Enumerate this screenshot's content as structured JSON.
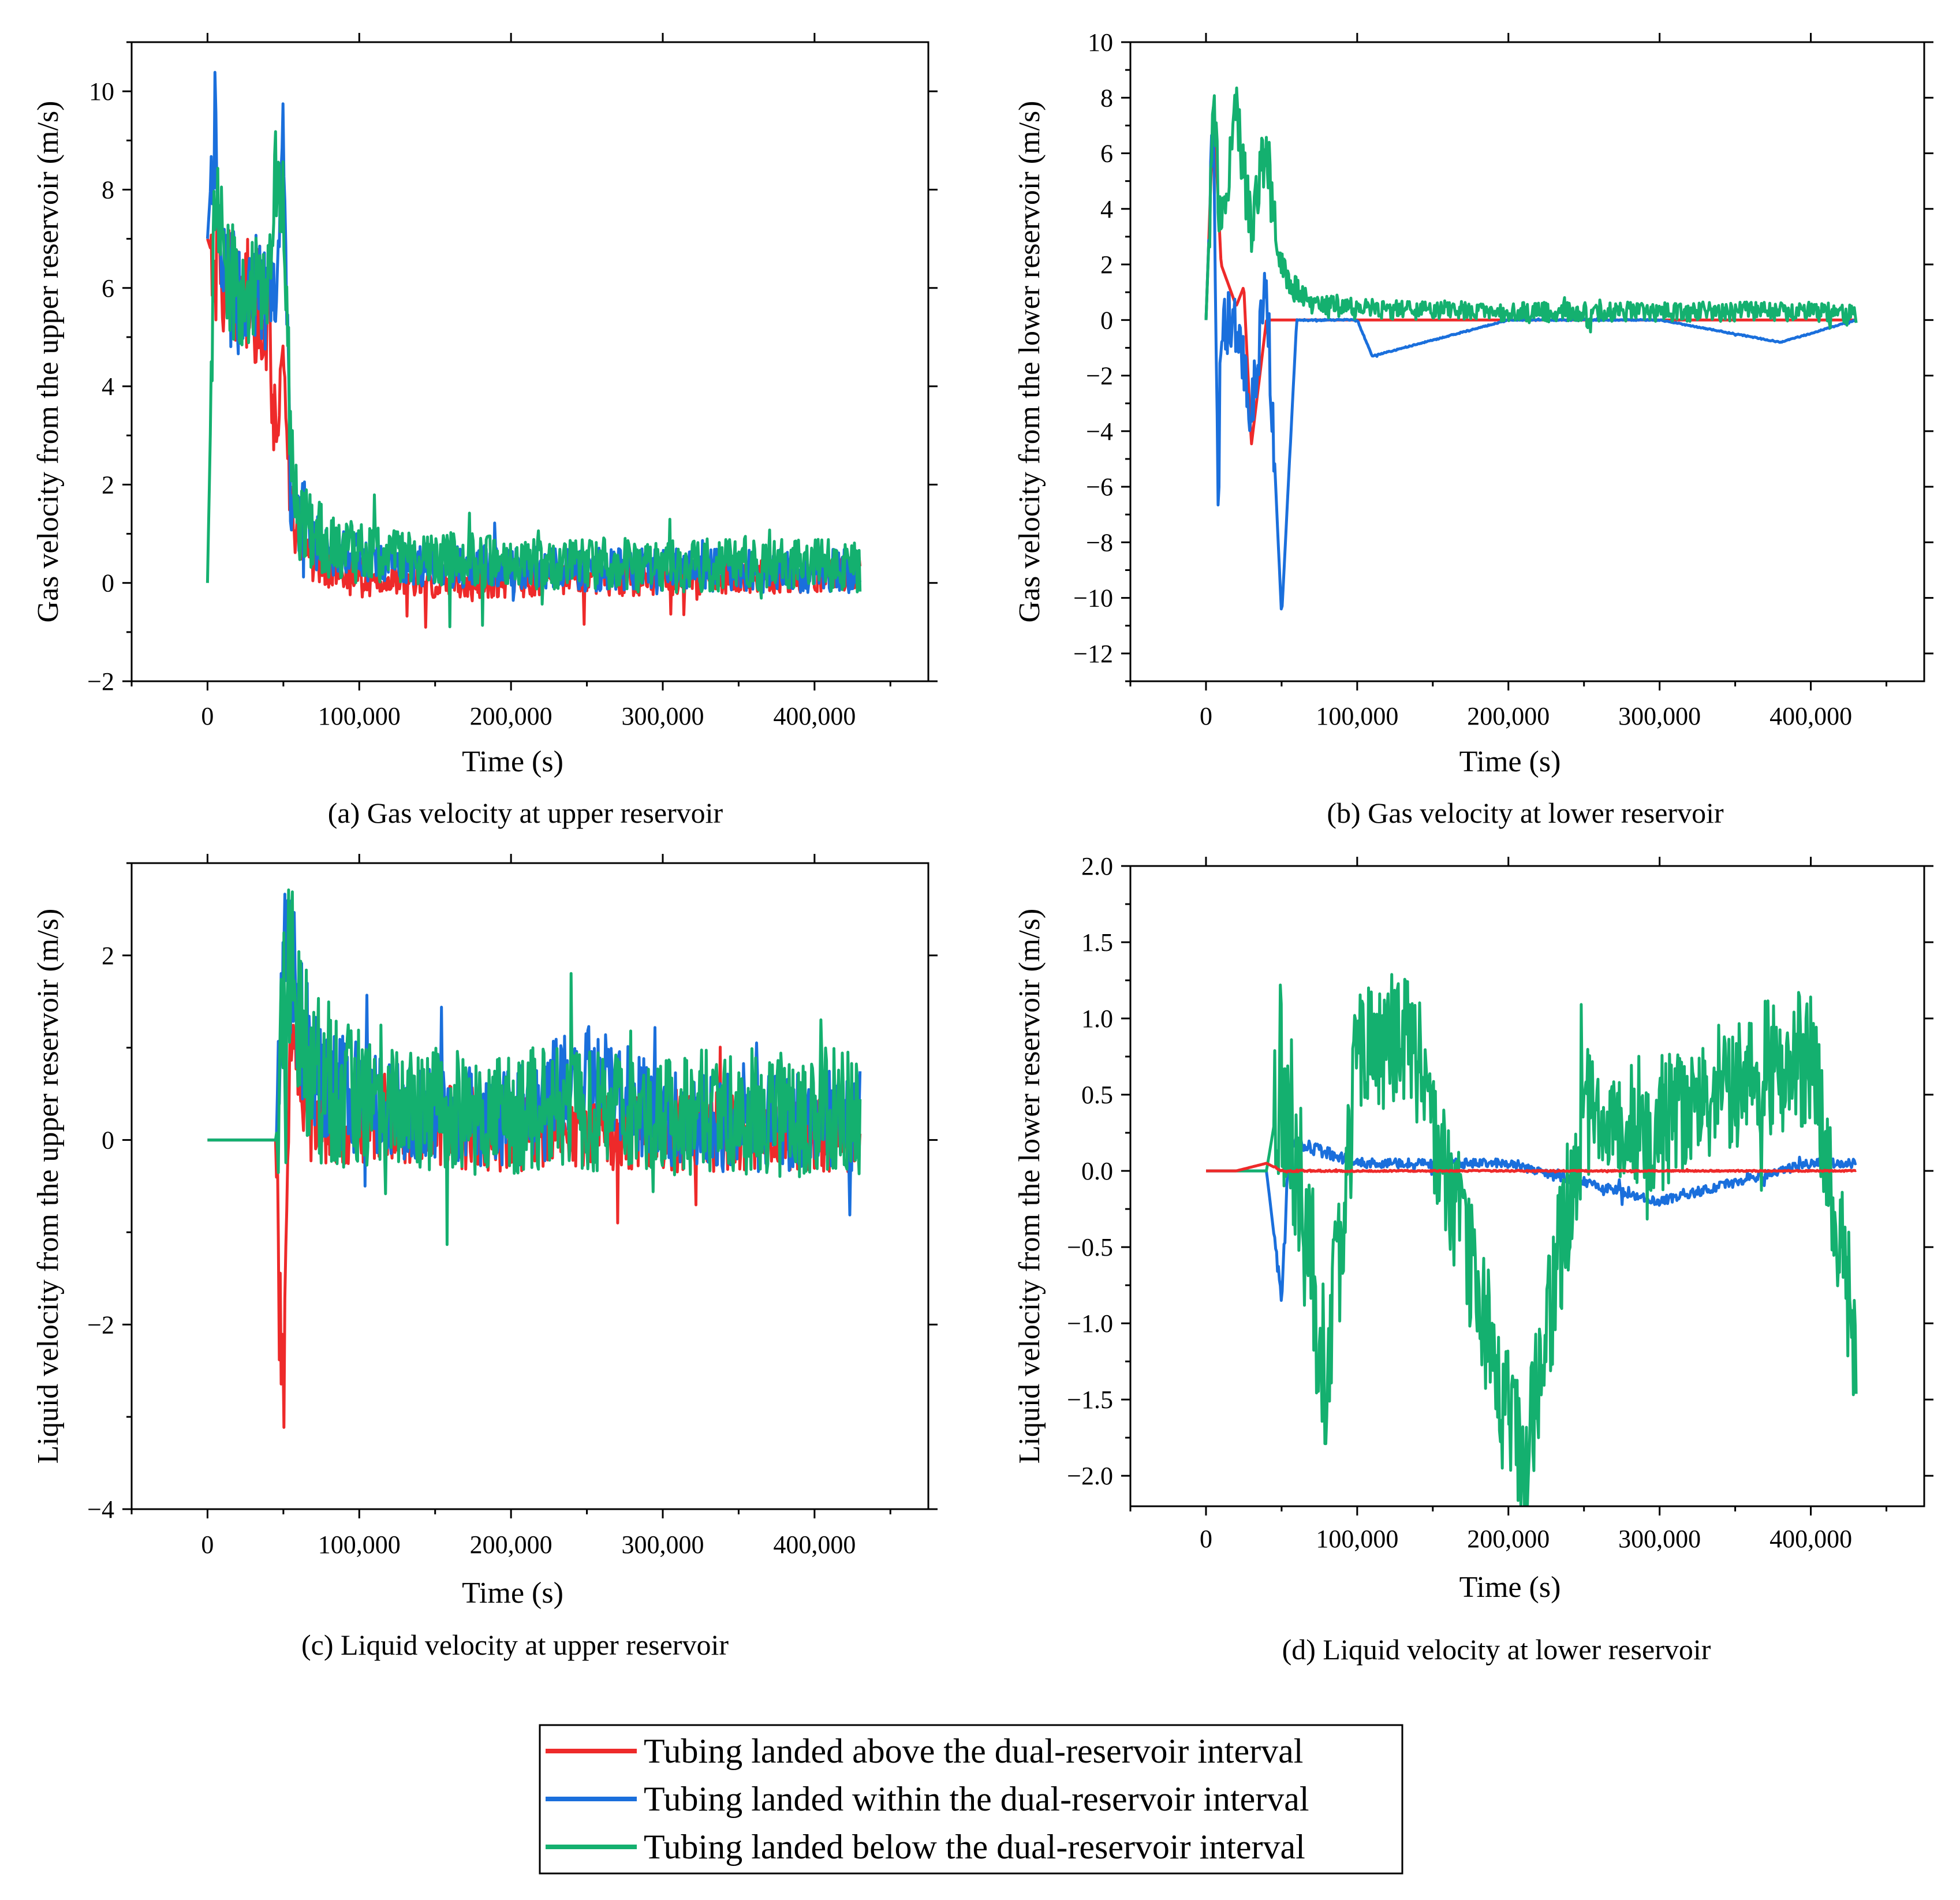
{
  "colors": {
    "above": "#ee2a2a",
    "within": "#1a6fdc",
    "below": "#14b06f"
  },
  "legend": {
    "items": [
      {
        "key": "above",
        "label": "Tubing landed above the dual-reservoir interval"
      },
      {
        "key": "within",
        "label": "Tubing landed within the dual-reservoir interval"
      },
      {
        "key": "below",
        "label": "Tubing landed below the dual-reservoir interval"
      }
    ]
  },
  "chart_data": [
    {
      "id": "a",
      "type": "line",
      "caption": "(a) Gas velocity at upper reservoir",
      "xlabel": "Time (s)",
      "ylabel": "Gas velocity from the upper reservoir (m/s)",
      "xlim": [
        -50000,
        475000
      ],
      "ylim": [
        -2,
        11
      ],
      "xticks": [
        0,
        100000,
        200000,
        300000,
        400000
      ],
      "xtick_labels": [
        "0",
        "100,000",
        "200,000",
        "300,000",
        "400,000"
      ],
      "yticks": [
        -2,
        0,
        2,
        4,
        6,
        8,
        10
      ],
      "ytick_labels": [
        "−2",
        "0",
        "2",
        "4",
        "6",
        "8",
        "10"
      ],
      "series": [
        {
          "name": "above",
          "x": [
            0,
            5000,
            10000,
            15000,
            20000,
            30000,
            40000,
            45000,
            50000,
            55000,
            60000,
            70000,
            80000,
            100000,
            150000,
            200000,
            300000,
            400000,
            430000
          ],
          "y": [
            7.0,
            6.5,
            6.2,
            6.0,
            5.9,
            5.7,
            5.5,
            3.0,
            4.5,
            1.5,
            1.0,
            0.5,
            0.3,
            0.1,
            0.05,
            0.05,
            0.1,
            0.15,
            0.2
          ]
        },
        {
          "name": "within",
          "x": [
            0,
            5000,
            10000,
            15000,
            20000,
            30000,
            40000,
            45000,
            50000,
            55000,
            60000,
            70000,
            80000,
            100000,
            150000,
            200000,
            300000,
            400000,
            430000
          ],
          "y": [
            7.0,
            9.6,
            6.3,
            6.0,
            5.9,
            5.9,
            5.9,
            5.8,
            9.4,
            1.4,
            1.2,
            0.9,
            0.7,
            0.5,
            0.35,
            0.3,
            0.25,
            0.25,
            0.25
          ]
        },
        {
          "name": "below",
          "x": [
            0,
            5000,
            10000,
            15000,
            20000,
            30000,
            40000,
            45000,
            50000,
            55000,
            60000,
            70000,
            80000,
            100000,
            150000,
            200000,
            300000,
            400000,
            430000
          ],
          "y": [
            0.0,
            8.2,
            6.8,
            6.3,
            6.0,
            6.0,
            6.0,
            8.1,
            7.5,
            2.5,
            1.3,
            1.0,
            0.8,
            0.6,
            0.5,
            0.4,
            0.35,
            0.35,
            0.35
          ]
        }
      ]
    },
    {
      "id": "b",
      "type": "line",
      "caption": "(b) Gas velocity at lower reservoir",
      "xlabel": "Time (s)",
      "ylabel": "Gas velocity from the lower reservoir (m/s)",
      "xlim": [
        -50000,
        475000
      ],
      "ylim": [
        -13,
        10
      ],
      "xticks": [
        0,
        100000,
        200000,
        300000,
        400000
      ],
      "xtick_labels": [
        "0",
        "100,000",
        "200,000",
        "300,000",
        "400,000"
      ],
      "yticks": [
        -12,
        -10,
        -8,
        -6,
        -4,
        -2,
        0,
        2,
        4,
        6,
        8,
        10
      ],
      "ytick_labels": [
        "−12",
        "−10",
        "−8",
        "−6",
        "−4",
        "−2",
        "0",
        "2",
        "4",
        "6",
        "8",
        "10"
      ],
      "series": [
        {
          "name": "above",
          "x": [
            0,
            5000,
            10000,
            20000,
            25000,
            30000,
            40000,
            50000,
            100000,
            200000,
            300000,
            400000,
            430000
          ],
          "y": [
            0.0,
            7.8,
            2.0,
            0.5,
            1.2,
            -4.5,
            0.0,
            0.0,
            0.0,
            0.0,
            0.0,
            0.0,
            0.0
          ]
        },
        {
          "name": "within",
          "x": [
            0,
            5000,
            8000,
            10000,
            20000,
            30000,
            40000,
            50000,
            60000,
            100000,
            110000,
            200000,
            300000,
            380000,
            430000
          ],
          "y": [
            0.0,
            7.8,
            -7.1,
            0.0,
            0.0,
            -3.2,
            1.4,
            -10.7,
            0.0,
            0.0,
            -1.3,
            0.0,
            0.0,
            -0.8,
            0.0
          ]
        },
        {
          "name": "below",
          "x": [
            0,
            5000,
            10000,
            20000,
            30000,
            40000,
            45000,
            50000,
            60000,
            70000,
            100000,
            200000,
            300000,
            400000,
            430000
          ],
          "y": [
            0.0,
            7.5,
            3.2,
            7.6,
            3.1,
            6.5,
            3.5,
            2.0,
            1.0,
            0.6,
            0.4,
            0.3,
            0.3,
            0.3,
            0.2
          ]
        }
      ]
    },
    {
      "id": "c",
      "type": "line",
      "caption": "(c) Liquid velocity at upper reservoir",
      "xlabel": "Time (s)",
      "ylabel": "Liquid velocity from the upper reservoir (m/s)",
      "xlim": [
        -50000,
        475000
      ],
      "ylim": [
        -4,
        3
      ],
      "xticks": [
        0,
        100000,
        200000,
        300000,
        400000
      ],
      "xtick_labels": [
        "0",
        "100,000",
        "200,000",
        "300,000",
        "400,000"
      ],
      "yticks": [
        -4,
        -2,
        0,
        2
      ],
      "ytick_labels": [
        "−4",
        "−2",
        "0",
        "2"
      ],
      "series": [
        {
          "name": "above",
          "x": [
            0,
            45000,
            50000,
            55000,
            60000,
            70000,
            100000,
            200000,
            300000,
            400000,
            430000
          ],
          "y": [
            0.0,
            0.0,
            -2.9,
            1.2,
            0.6,
            0.3,
            0.2,
            0.1,
            0.1,
            0.1,
            0.1
          ]
        },
        {
          "name": "within",
          "x": [
            0,
            45000,
            50000,
            55000,
            60000,
            70000,
            100000,
            200000,
            250000,
            300000,
            400000,
            430000
          ],
          "y": [
            0.0,
            0.0,
            1.8,
            2.0,
            1.4,
            0.8,
            0.4,
            0.2,
            0.8,
            0.2,
            0.2,
            0.2
          ]
        },
        {
          "name": "below",
          "x": [
            0,
            45000,
            50000,
            55000,
            60000,
            70000,
            100000,
            200000,
            300000,
            400000,
            430000
          ],
          "y": [
            0.0,
            0.0,
            1.7,
            1.8,
            1.2,
            0.7,
            0.4,
            0.3,
            0.3,
            0.3,
            0.3
          ]
        }
      ]
    },
    {
      "id": "d",
      "type": "line",
      "caption": "(d) Liquid velocity at lower reservoir",
      "xlabel": "Time (s)",
      "ylabel": "Liquid velocity from the lower reservoir (m/s)",
      "xlim": [
        -50000,
        475000
      ],
      "ylim": [
        -2.2,
        2.0
      ],
      "xticks": [
        0,
        100000,
        200000,
        300000,
        400000
      ],
      "xtick_labels": [
        "0",
        "100,000",
        "200,000",
        "300,000",
        "400,000"
      ],
      "yticks": [
        -2.0,
        -1.5,
        -1.0,
        -0.5,
        0.0,
        0.5,
        1.0,
        1.5,
        2.0
      ],
      "ytick_labels": [
        "−2.0",
        "−1.5",
        "−1.0",
        "−0.5",
        "0.0",
        "0.5",
        "1.0",
        "1.5",
        "2.0"
      ],
      "series": [
        {
          "name": "above",
          "x": [
            0,
            20000,
            40000,
            50000,
            100000,
            200000,
            300000,
            400000,
            430000
          ],
          "y": [
            0.0,
            0.0,
            0.05,
            0.0,
            0.0,
            0.0,
            0.0,
            0.0,
            0.0
          ]
        },
        {
          "name": "within",
          "x": [
            0,
            40000,
            50000,
            55000,
            100000,
            200000,
            300000,
            400000,
            430000
          ],
          "y": [
            0.0,
            0.0,
            -0.85,
            0.2,
            0.05,
            0.05,
            -0.2,
            0.05,
            0.05
          ]
        },
        {
          "name": "below",
          "x": [
            0,
            40000,
            50000,
            80000,
            100000,
            135000,
            210000,
            250000,
            300000,
            360000,
            400000,
            430000
          ],
          "y": [
            0.0,
            0.0,
            0.6,
            -1.3,
            0.7,
            0.9,
            -1.95,
            0.4,
            0.3,
            0.65,
            0.75,
            -1.15
          ]
        }
      ]
    }
  ]
}
